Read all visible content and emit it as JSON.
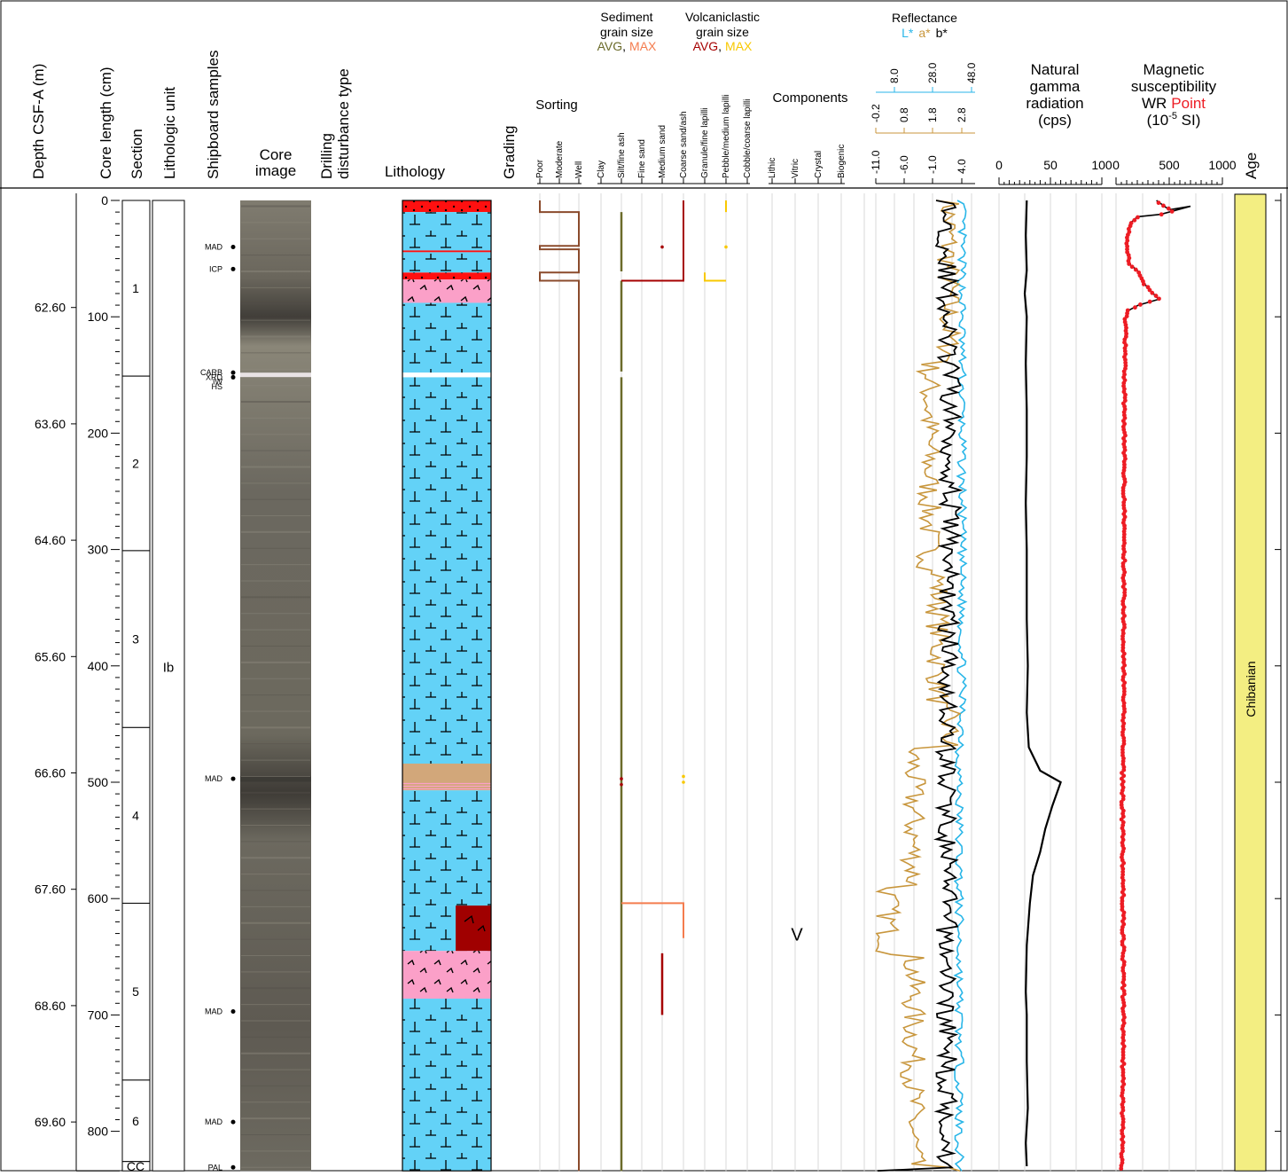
{
  "chart_data": {
    "type": "line",
    "headers": {
      "depth": "Depth CSF-A (m)",
      "core_length": "Core length (cm)",
      "section": "Section",
      "lith_unit": "Lithologic unit",
      "samples": "Shipboard samples",
      "core_image_l1": "Core",
      "core_image_l2": "image",
      "drilling_l1": "Drilling",
      "drilling_l2": "disturbance type",
      "lithology": "Lithology",
      "grading": "Grading",
      "sorting": "Sorting",
      "sed_grain": [
        "Sediment",
        "grain size"
      ],
      "sed_avg": "AVG",
      "sed_max": "MAX",
      "volc_grain": [
        "Volcaniclastic",
        "grain size"
      ],
      "volc_avg": "AVG",
      "volc_max": "MAX",
      "comma": ",",
      "components": "Components",
      "reflectance": "Reflectance",
      "refl_l": "L*",
      "refl_a": "a*",
      "refl_b": "b*",
      "ngr": [
        "Natural",
        "gamma",
        "radiation",
        "(cps)"
      ],
      "ms": [
        "Magnetic",
        "susceptibility"
      ],
      "ms_wr": "WR",
      "ms_point": "Point",
      "ms_units_pre": "(10",
      "ms_units_exp": "-5",
      "ms_units_post": " SI)",
      "age": "Age"
    },
    "sorting_ticks": [
      "Poor",
      "Moderate",
      "Well"
    ],
    "grain_ticks": [
      "Clay",
      "Silt/fine ash",
      "Fine sand",
      "Medium sand",
      "Coarse sand/ash",
      "Granule/fine lapilli",
      "Pebble/medium lapilli",
      "Cobble/coarse lapilli"
    ],
    "component_ticks": [
      "Lithic",
      "Vitric",
      "Crystal",
      "Biogenic"
    ],
    "depth_ticks": [
      "62.60",
      "63.60",
      "64.60",
      "65.60",
      "66.60",
      "67.60",
      "68.60",
      "69.60"
    ],
    "length_ticks": [
      "0",
      "100",
      "200",
      "300",
      "400",
      "500",
      "600",
      "700",
      "800"
    ],
    "sections": [
      {
        "label": "1",
        "top": 0,
        "bottom": 151
      },
      {
        "label": "2",
        "top": 151,
        "bottom": 301
      },
      {
        "label": "3",
        "top": 301,
        "bottom": 453
      },
      {
        "label": "4",
        "top": 453,
        "bottom": 604
      },
      {
        "label": "5",
        "top": 604,
        "bottom": 756
      },
      {
        "label": "6",
        "top": 756,
        "bottom": 826
      },
      {
        "label": "CC",
        "top": 826,
        "bottom": 834
      }
    ],
    "lith_unit_label": "Ib",
    "samples": [
      {
        "label": "MAD",
        "cm": 40
      },
      {
        "label": "ICP",
        "cm": 59
      },
      {
        "label": "CARB",
        "cm": 148
      },
      {
        "label": "XRD",
        "cm": 152
      },
      {
        "label": "IW",
        "cm": 156
      },
      {
        "label": "HS",
        "cm": 160
      },
      {
        "label": "MAD",
        "cm": 497
      },
      {
        "label": "MAD",
        "cm": 697
      },
      {
        "label": "MAD",
        "cm": 792
      },
      {
        "label": "PAL",
        "cm": 831
      }
    ],
    "lithology_beds": [
      {
        "top": 0,
        "bottom": 10,
        "type": "red-dots"
      },
      {
        "top": 10,
        "bottom": 43,
        "type": "blue"
      },
      {
        "top": 43,
        "bottom": 44.5,
        "type": "red"
      },
      {
        "top": 44.5,
        "bottom": 62,
        "type": "blue"
      },
      {
        "top": 62,
        "bottom": 68,
        "type": "red-dots"
      },
      {
        "top": 68,
        "bottom": 88,
        "type": "pink"
      },
      {
        "top": 88,
        "bottom": 148,
        "type": "blue"
      },
      {
        "top": 148,
        "bottom": 152,
        "type": "white"
      },
      {
        "top": 152,
        "bottom": 484,
        "type": "blue"
      },
      {
        "top": 484,
        "bottom": 500,
        "type": "tan"
      },
      {
        "top": 500,
        "bottom": 507,
        "type": "tan-bands"
      },
      {
        "top": 507,
        "bottom": 606,
        "type": "blue"
      },
      {
        "top": 606,
        "bottom": 645,
        "type": "blue-dark"
      },
      {
        "top": 645,
        "bottom": 686,
        "type": "pink"
      },
      {
        "top": 686,
        "bottom": 834,
        "type": "blue"
      }
    ],
    "sorting_path": [
      [
        0,
        0
      ],
      [
        0,
        10
      ],
      [
        2,
        10
      ],
      [
        2,
        39
      ],
      [
        0,
        39
      ],
      [
        0,
        42
      ],
      [
        2,
        42
      ],
      [
        2,
        62
      ],
      [
        0,
        62
      ],
      [
        0,
        69
      ],
      [
        2,
        69
      ],
      [
        2,
        834
      ]
    ],
    "sed_avg_segments": [
      [
        10,
        61
      ],
      [
        69,
        147
      ],
      [
        152,
        834
      ]
    ],
    "sed_max_path": [
      [
        1,
        604
      ],
      [
        4,
        604
      ],
      [
        4,
        634
      ]
    ],
    "volc_avg_path": [
      [
        1,
        69
      ],
      [
        4,
        69
      ],
      [
        4,
        0
      ]
    ],
    "volc_avg_dots": [
      [
        3,
        40
      ],
      [
        1,
        497
      ],
      [
        1,
        502
      ]
    ],
    "volc_avg_bar": [
      [
        3,
        647
      ],
      [
        3,
        700
      ]
    ],
    "volc_max_path": [
      [
        5,
        0
      ],
      [
        5,
        10
      ]
    ],
    "volc_max_path2": [
      [
        4,
        62
      ],
      [
        4,
        69
      ],
      [
        5,
        69
      ]
    ],
    "volc_max_dots": [
      [
        5,
        40
      ],
      [
        3,
        495
      ],
      [
        3,
        500
      ]
    ],
    "component_marker": {
      "label": "V",
      "cm": 630
    },
    "reflectance": {
      "l_ticks": [
        "8.0",
        "28.0",
        "48.0"
      ],
      "a_ticks": [
        "-0.2",
        "0.8",
        "1.8",
        "2.8"
      ],
      "b_ticks": [
        "-11.0",
        "-6.0",
        "-1.0",
        "4.0"
      ],
      "l_color": "#29b6e8",
      "a_color": "#c8963c",
      "b_color": "#000000"
    },
    "ngr": {
      "ticks": [
        "0",
        "50",
        "100"
      ],
      "xlim": [
        0,
        100
      ],
      "points": [
        [
          27,
          0
        ],
        [
          26,
          30
        ],
        [
          27,
          60
        ],
        [
          25,
          80
        ],
        [
          27,
          100
        ],
        [
          26,
          140
        ],
        [
          27,
          180
        ],
        [
          27,
          220
        ],
        [
          26,
          260
        ],
        [
          27,
          300
        ],
        [
          27,
          360
        ],
        [
          28,
          400
        ],
        [
          27,
          440
        ],
        [
          29,
          470
        ],
        [
          40,
          490
        ],
        [
          60,
          500
        ],
        [
          52,
          520
        ],
        [
          45,
          540
        ],
        [
          40,
          560
        ],
        [
          33,
          580
        ],
        [
          30,
          604
        ],
        [
          27,
          640
        ],
        [
          26,
          680
        ],
        [
          27,
          700
        ],
        [
          27,
          740
        ],
        [
          28,
          780
        ],
        [
          26,
          810
        ],
        [
          27,
          830
        ]
      ]
    },
    "ms": {
      "ticks": [
        "0",
        "500",
        "1000"
      ],
      "xlim": [
        0,
        1000
      ],
      "wr_color": "#000000",
      "point_color": "#ed1c24",
      "points": [
        [
          380,
          0
        ],
        [
          500,
          8
        ],
        [
          700,
          5
        ],
        [
          420,
          12
        ],
        [
          200,
          14
        ],
        [
          130,
          20
        ],
        [
          100,
          40
        ],
        [
          130,
          55
        ],
        [
          200,
          60
        ],
        [
          250,
          70
        ],
        [
          330,
          78
        ],
        [
          400,
          85
        ],
        [
          210,
          90
        ],
        [
          110,
          95
        ],
        [
          90,
          100
        ],
        [
          80,
          150
        ],
        [
          75,
          300
        ],
        [
          70,
          450
        ],
        [
          60,
          520
        ],
        [
          65,
          600
        ],
        [
          70,
          700
        ],
        [
          60,
          800
        ],
        [
          55,
          834
        ]
      ]
    },
    "age_label": "Chibanian"
  }
}
